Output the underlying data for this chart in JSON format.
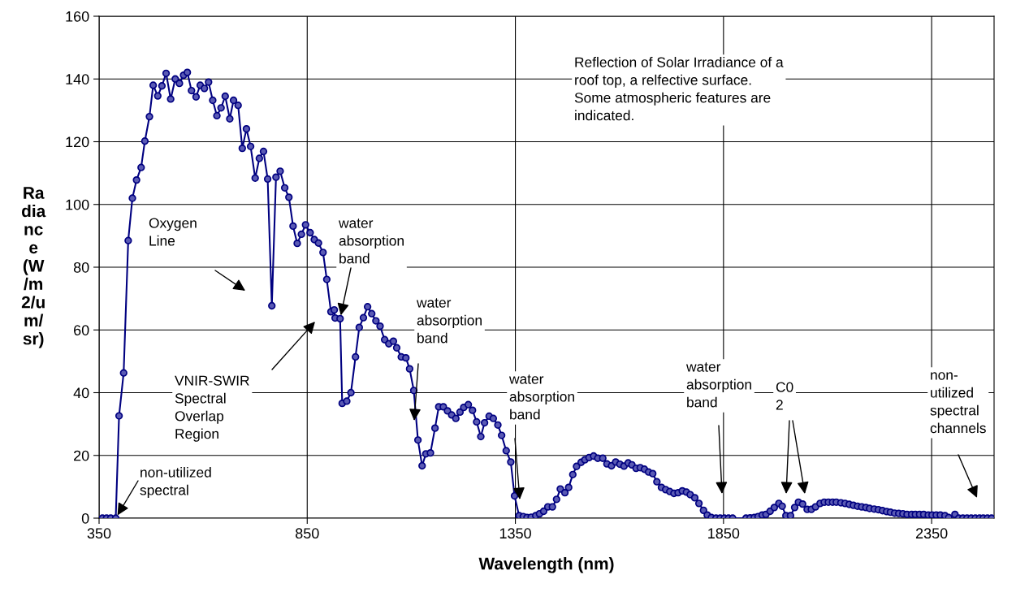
{
  "chart_data": {
    "type": "line",
    "xlabel": "Wavelength (nm)",
    "ylabel": "Ra\ndia\nnc\ne\n(W\n/m\n2/u\nm/\nsr)",
    "x": [
      358,
      368,
      378,
      390,
      398,
      409,
      420,
      430,
      440,
      451,
      460,
      471,
      480,
      491,
      501,
      511,
      522,
      533,
      543,
      553,
      562,
      572,
      583,
      593,
      603,
      613,
      623,
      633,
      643,
      653,
      664,
      673,
      684,
      694,
      704,
      714,
      725,
      735,
      745,
      755,
      765,
      775,
      785,
      796,
      806,
      816,
      826,
      836,
      846,
      857,
      867,
      877,
      888,
      897,
      907,
      915,
      917,
      929,
      934,
      945,
      955,
      966,
      975,
      985,
      995,
      1005,
      1015,
      1025,
      1036,
      1046,
      1057,
      1065,
      1076,
      1087,
      1096,
      1106,
      1116,
      1126,
      1135,
      1146,
      1157,
      1166,
      1177,
      1187,
      1197,
      1207,
      1217,
      1226,
      1237,
      1247,
      1257,
      1267,
      1276,
      1287,
      1297,
      1308,
      1317,
      1328,
      1339,
      1348,
      1359,
      1369,
      1378,
      1388,
      1399,
      1408,
      1418,
      1428,
      1439,
      1449,
      1458,
      1469,
      1478,
      1488,
      1497,
      1508,
      1517,
      1527,
      1538,
      1548,
      1560,
      1570,
      1581,
      1591,
      1601,
      1611,
      1621,
      1630,
      1640,
      1650,
      1660,
      1670,
      1680,
      1690,
      1701,
      1711,
      1721,
      1731,
      1741,
      1751,
      1761,
      1770,
      1781,
      1791,
      1802,
      1811,
      1821,
      1832,
      1842,
      1852,
      1862,
      1872,
      1904,
      1914,
      1924,
      1933,
      1943,
      1952,
      1962,
      1972,
      1983,
      1991,
      2000,
      2011,
      2021,
      2030,
      2040,
      2051,
      2061,
      2071,
      2082,
      2092,
      2102,
      2112,
      2121,
      2132,
      2142,
      2152,
      2162,
      2172,
      2182,
      2192,
      2201,
      2212,
      2222,
      2232,
      2242,
      2251,
      2261,
      2271,
      2281,
      2291,
      2302,
      2311,
      2321,
      2331,
      2342,
      2351,
      2361,
      2371,
      2382,
      2391,
      2406,
      2415,
      2425,
      2435,
      2445,
      2455,
      2465,
      2474,
      2484,
      2494
    ],
    "series": [
      {
        "color": "#000080",
        "values": [
          0,
          0,
          0,
          0,
          32.6,
          46.3,
          88.5,
          102,
          107.8,
          111.8,
          120.2,
          128,
          138,
          134.6,
          137.8,
          141.8,
          133.6,
          140,
          138.6,
          141.2,
          142.1,
          136.3,
          134.3,
          138,
          137,
          139,
          133.2,
          128.3,
          130.8,
          134.5,
          127.3,
          133.2,
          131.6,
          117.9,
          124.1,
          118.5,
          108.4,
          114.7,
          116.9,
          108.1,
          67.7,
          108.7,
          110.6,
          105.3,
          102.3,
          93.1,
          87.6,
          90.5,
          93.5,
          91,
          88.8,
          87.7,
          84.7,
          76.1,
          65.8,
          66.4,
          63.8,
          63.6,
          36.6,
          37.3,
          40,
          51.4,
          60.8,
          63.9,
          67.4,
          65.2,
          62.9,
          61.2,
          56.9,
          55.6,
          56.4,
          54.3,
          51.4,
          51.1,
          47.6,
          40.7,
          24.9,
          16.7,
          20.5,
          20.8,
          28.7,
          35.5,
          35.5,
          34.2,
          32.9,
          31.8,
          33.8,
          35.3,
          36.2,
          34.4,
          30.7,
          26,
          30.4,
          32.5,
          31.8,
          29.7,
          26.4,
          21.5,
          17.9,
          7.1,
          0.8,
          0.5,
          0.2,
          0.3,
          0.8,
          1.4,
          2.2,
          3.6,
          3.6,
          6,
          9.3,
          8.1,
          9.8,
          13.9,
          16.5,
          17.8,
          18.6,
          19.3,
          19.8,
          19.1,
          19.1,
          17.3,
          16.7,
          17.9,
          17.2,
          16.6,
          17.6,
          17,
          15.9,
          16.1,
          15.6,
          14.7,
          14.2,
          11.6,
          9.8,
          9.1,
          8.5,
          7.9,
          8.1,
          8.7,
          8.3,
          7.5,
          6.5,
          4.7,
          2.5,
          1,
          0.2,
          0,
          0,
          0,
          0,
          0,
          0,
          0.1,
          0.2,
          0.5,
          1,
          1.2,
          2.2,
          3.4,
          4.7,
          3.8,
          0.8,
          0.8,
          3.4,
          5.1,
          4.5,
          2.8,
          2.8,
          3.6,
          4.7,
          5.1,
          5.1,
          5.1,
          5.1,
          4.9,
          4.7,
          4.4,
          4.1,
          3.8,
          3.6,
          3.4,
          3.1,
          2.9,
          2.7,
          2.4,
          2.1,
          1.9,
          1.6,
          1.5,
          1.4,
          1.2,
          1.2,
          1.2,
          1.2,
          1.2,
          1,
          1,
          1,
          1,
          0.8,
          0.2,
          1.2,
          0,
          0,
          0,
          0,
          0,
          0,
          0,
          0,
          0
        ]
      }
    ],
    "xlim": [
      350,
      2500
    ],
    "xticks": [
      350,
      850,
      1350,
      1850,
      2350
    ],
    "ylim": [
      0,
      160
    ],
    "yticks": [
      0,
      20,
      40,
      60,
      80,
      100,
      120,
      140,
      160
    ],
    "grid": true,
    "marker": "circle",
    "line_style": "solid",
    "annotations": [
      "Reflection of Solar Irradiance of a\nroof top, a relfective surface.\nSome atmospheric features are\nindicated.",
      "Oxygen\nLine",
      "VNIR-SWIR\nSpectral\nOverlap\nRegion",
      {
        "text": "water\nabsorption\nband",
        "x": 929,
        "y": 63.6
      },
      "water\nabsorption\nband",
      "water\nabsorption\nband",
      "water\nabsorption\nband",
      "C0\n2",
      "non-\nutilized\nspectral\nchannels",
      {
        "text": "non-utilized\nspectral",
        "x": 390,
        "y": 0
      }
    ]
  }
}
